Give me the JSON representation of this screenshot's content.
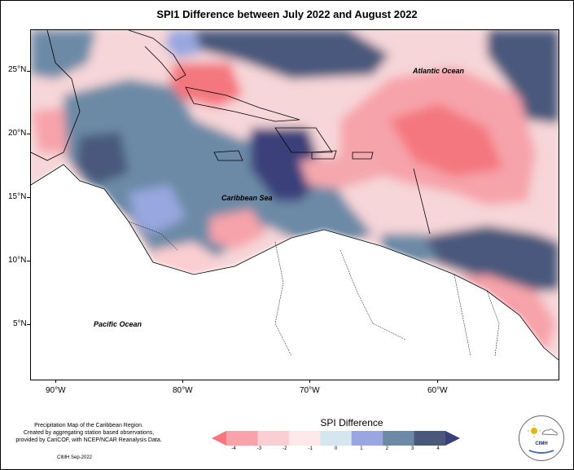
{
  "title": "SPI1 Difference between July 2022 and August 2022",
  "map": {
    "latitude_labels": [
      "25°N",
      "20°N",
      "15°N",
      "10°N",
      "5°N"
    ],
    "longitude_labels": [
      "90°W",
      "80°W",
      "70°W",
      "60°W"
    ],
    "regions": [
      {
        "name": "Atlantic Ocean"
      },
      {
        "name": "Caribbean Sea"
      },
      {
        "name": "Pacific Ocean"
      }
    ]
  },
  "credit": {
    "line1": "Precipitation Map of the Caribbean Region.",
    "line2": "Created by aggregating station based observations,",
    "line3": "provided by CariCOF, with NCEP/NCAR Reanalysis Data.",
    "date": "CIMH Sep-2022"
  },
  "legend": {
    "title": "SPI Difference",
    "ticks": [
      "-4",
      "-3",
      "-2",
      "-1",
      "0",
      "1",
      "2",
      "3",
      "4"
    ],
    "colors": [
      "#f4777f",
      "#f7a3aa",
      "#fbcfd2",
      "#fde8ea",
      "#d6e6ef",
      "#98a7df",
      "#6c8aa6",
      "#4a597b",
      "#3a3f7a"
    ]
  },
  "logo": {
    "text": "CIMH"
  }
}
